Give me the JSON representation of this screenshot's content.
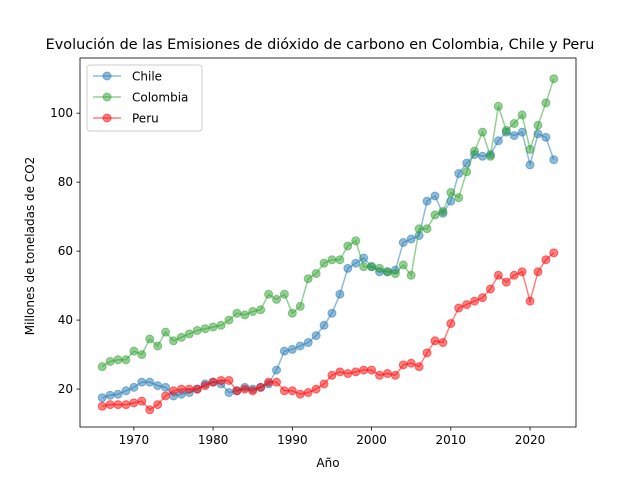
{
  "chart_data": {
    "type": "line",
    "title": "Evolución de las Emisiones de dióxido de carbono en Colombia, Chile y Peru",
    "xlabel": "Año",
    "ylabel": "Millones de toneladas de CO2",
    "xlim": [
      1963.2,
      2025.8
    ],
    "ylim": [
      9.0,
      116.0
    ],
    "xticks": [
      1970,
      1980,
      1990,
      2000,
      2010,
      2020
    ],
    "yticks": [
      20,
      40,
      60,
      80,
      100
    ],
    "grid": false,
    "legend_position": "top-left",
    "x": [
      1966,
      1967,
      1968,
      1969,
      1970,
      1971,
      1972,
      1973,
      1974,
      1975,
      1976,
      1977,
      1978,
      1979,
      1980,
      1981,
      1982,
      1983,
      1984,
      1985,
      1986,
      1987,
      1988,
      1989,
      1990,
      1991,
      1992,
      1993,
      1994,
      1995,
      1996,
      1997,
      1998,
      1999,
      2000,
      2001,
      2002,
      2003,
      2004,
      2005,
      2006,
      2007,
      2008,
      2009,
      2010,
      2011,
      2012,
      2013,
      2014,
      2015,
      2016,
      2017,
      2018,
      2019,
      2020,
      2021,
      2022,
      2023
    ],
    "series": [
      {
        "name": "Chile",
        "color": "#1f77b4",
        "values": [
          17.5,
          18.2,
          18.5,
          19.5,
          20.5,
          22.0,
          22.0,
          21.0,
          20.5,
          18.0,
          18.5,
          19.0,
          20.0,
          21.5,
          22.0,
          21.5,
          19.0,
          19.5,
          20.5,
          20.0,
          20.5,
          21.5,
          25.5,
          31.0,
          31.5,
          32.5,
          33.5,
          35.5,
          38.5,
          42.0,
          47.5,
          55.0,
          56.5,
          58.0,
          55.5,
          54.0,
          54.0,
          54.5,
          62.5,
          63.5,
          64.5,
          74.5,
          76.0,
          71.0,
          74.5,
          82.5,
          85.5,
          88.0,
          87.5,
          88.0,
          92.0,
          94.5,
          93.5,
          94.5,
          85.0,
          94.0,
          93.0,
          86.5
        ]
      },
      {
        "name": "Colombia",
        "color": "#2ca02c",
        "values": [
          26.5,
          28.0,
          28.5,
          28.5,
          31.0,
          30.0,
          34.5,
          32.5,
          36.5,
          34.0,
          35.0,
          36.0,
          37.0,
          37.5,
          38.0,
          38.5,
          40.0,
          42.0,
          41.5,
          42.5,
          43.0,
          47.5,
          46.0,
          47.5,
          42.0,
          44.0,
          52.0,
          53.5,
          56.5,
          57.5,
          57.5,
          61.5,
          63.0,
          55.5,
          55.5,
          55.0,
          54.0,
          53.5,
          56.0,
          53.0,
          66.5,
          66.5,
          70.5,
          71.5,
          77.0,
          75.5,
          83.0,
          89.0,
          94.5,
          87.5,
          102.0,
          95.0,
          97.0,
          99.5,
          89.5,
          96.5,
          103.0,
          110.0
        ]
      },
      {
        "name": "Peru",
        "color": "#ff0000",
        "values": [
          15.0,
          15.5,
          15.5,
          15.5,
          16.0,
          16.5,
          14.0,
          15.5,
          18.0,
          19.5,
          20.0,
          20.0,
          20.0,
          21.0,
          22.0,
          22.5,
          22.5,
          19.5,
          20.0,
          19.5,
          20.5,
          22.0,
          22.0,
          19.5,
          19.5,
          18.5,
          19.0,
          20.0,
          21.5,
          24.0,
          25.0,
          24.5,
          25.0,
          25.5,
          25.5,
          24.0,
          24.5,
          24.0,
          27.0,
          27.5,
          26.5,
          30.5,
          34.0,
          33.5,
          39.0,
          43.5,
          44.5,
          45.5,
          46.5,
          49.0,
          53.0,
          51.0,
          53.0,
          54.0,
          45.5,
          54.0,
          57.5,
          59.5
        ]
      }
    ]
  }
}
